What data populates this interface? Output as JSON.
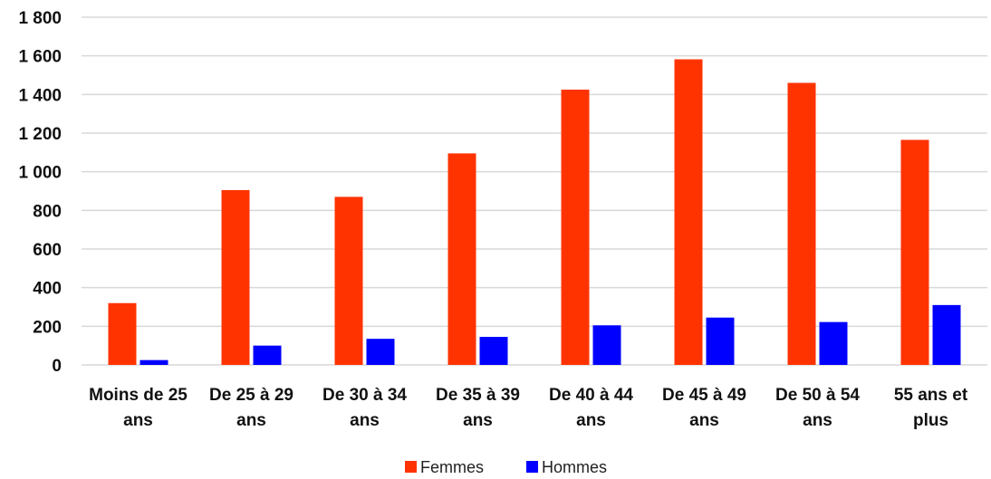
{
  "chart_data": {
    "type": "bar",
    "title": "",
    "xlabel": "",
    "ylabel": "",
    "categories": [
      [
        "Moins de 25",
        "ans"
      ],
      [
        "De 25 à 29",
        "ans"
      ],
      [
        "De 30 à 34",
        "ans"
      ],
      [
        "De 35 à 39",
        "ans"
      ],
      [
        "De 40 à 44",
        "ans"
      ],
      [
        "De 45 à 49",
        "ans"
      ],
      [
        "De 50 à 54",
        "ans"
      ],
      [
        "55 ans et",
        "plus"
      ]
    ],
    "series": [
      {
        "name": "Femmes",
        "color": "#ff3300",
        "values": [
          320,
          905,
          870,
          1095,
          1425,
          1582,
          1460,
          1165
        ]
      },
      {
        "name": "Hommes",
        "color": "#0000ff",
        "values": [
          25,
          100,
          135,
          145,
          205,
          245,
          222,
          310
        ]
      }
    ],
    "ylim": [
      0,
      1800
    ],
    "yticks": [
      {
        "value": 0,
        "label": "0"
      },
      {
        "value": 200,
        "label": "200"
      },
      {
        "value": 400,
        "label": "400"
      },
      {
        "value": 600,
        "label": "600"
      },
      {
        "value": 800,
        "label": "800"
      },
      {
        "value": 1000,
        "label": "1 000"
      },
      {
        "value": 1200,
        "label": "1 200"
      },
      {
        "value": 1400,
        "label": "1 400"
      },
      {
        "value": 1600,
        "label": "1 600"
      },
      {
        "value": 1800,
        "label": "1 800"
      }
    ],
    "grid": true,
    "legend_position": "bottom-center"
  }
}
